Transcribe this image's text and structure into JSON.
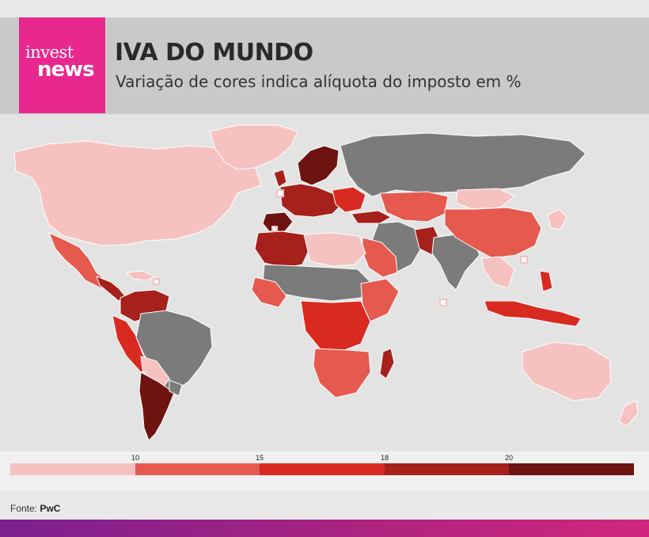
{
  "brand": {
    "line1": "invest",
    "line2": "news"
  },
  "header": {
    "title": "IVA DO MUNDO",
    "subtitle": "Variação de cores indica alíquota do imposto em %"
  },
  "map": {
    "colors": {
      "no_data": "#7b7b7b",
      "ocean": "#e3e3e3",
      "lt10": "#f6c2c0",
      "10_15": "#e5594f",
      "15_18": "#d92a22",
      "18_20": "#a6211c",
      "gt20": "#6e1410"
    }
  },
  "legend": {
    "ticks": [
      "10",
      "15",
      "18",
      "20"
    ],
    "colors": [
      "#f6c2c0",
      "#e5594f",
      "#d92a22",
      "#a6211c",
      "#6e1410"
    ]
  },
  "source": {
    "label": "Fonte:",
    "value": "PwC"
  }
}
